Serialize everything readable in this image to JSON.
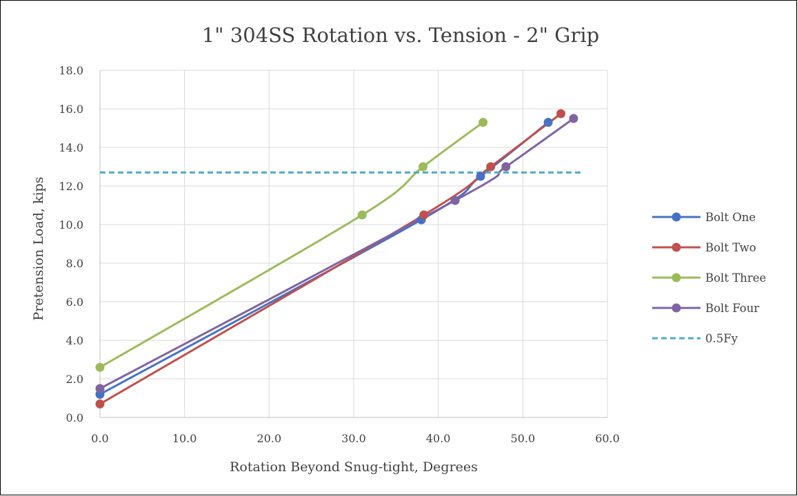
{
  "chart_data": {
    "type": "line",
    "title": "1\" 304SS Rotation vs. Tension - 2\" Grip",
    "xlabel": "Rotation Beyond Snug-tight, Degrees",
    "ylabel": "Pretension Load, kips",
    "xlim": [
      0,
      60
    ],
    "ylim": [
      0,
      18
    ],
    "x_ticks": [
      "0.0",
      "10.0",
      "20.0",
      "30.0",
      "40.0",
      "50.0",
      "60.0"
    ],
    "y_ticks": [
      "0.0",
      "2.0",
      "4.0",
      "6.0",
      "8.0",
      "10.0",
      "12.0",
      "14.0",
      "16.0",
      "18.0"
    ],
    "grid": true,
    "legend_position": "right",
    "series": [
      {
        "name": "Bolt One",
        "color": "#4472C4",
        "marker": "circle",
        "smooth": true,
        "points": [
          [
            0,
            1.2
          ],
          [
            38,
            10.25
          ],
          [
            45,
            12.5
          ],
          [
            53,
            15.3
          ]
        ]
      },
      {
        "name": "Bolt Two",
        "color": "#C0504D",
        "marker": "circle",
        "smooth": true,
        "points": [
          [
            0,
            0.7
          ],
          [
            38.3,
            10.5
          ],
          [
            46.2,
            13.0
          ],
          [
            54.5,
            15.75
          ]
        ]
      },
      {
        "name": "Bolt Three",
        "color": "#9BBB59",
        "marker": "circle",
        "smooth": true,
        "points": [
          [
            0,
            2.6
          ],
          [
            31,
            10.5
          ],
          [
            38.2,
            13.0
          ],
          [
            45.3,
            15.3
          ]
        ]
      },
      {
        "name": "Bolt Four",
        "color": "#8064A2",
        "marker": "circle",
        "smooth": true,
        "points": [
          [
            0,
            1.5
          ],
          [
            42,
            11.25
          ],
          [
            48,
            13.0
          ],
          [
            56,
            15.5
          ]
        ]
      },
      {
        "name": "0.5Fy",
        "color": "#4BACC6",
        "marker": "none",
        "dashed": true,
        "points": [
          [
            0,
            12.7
          ],
          [
            57,
            12.7
          ]
        ]
      }
    ]
  }
}
